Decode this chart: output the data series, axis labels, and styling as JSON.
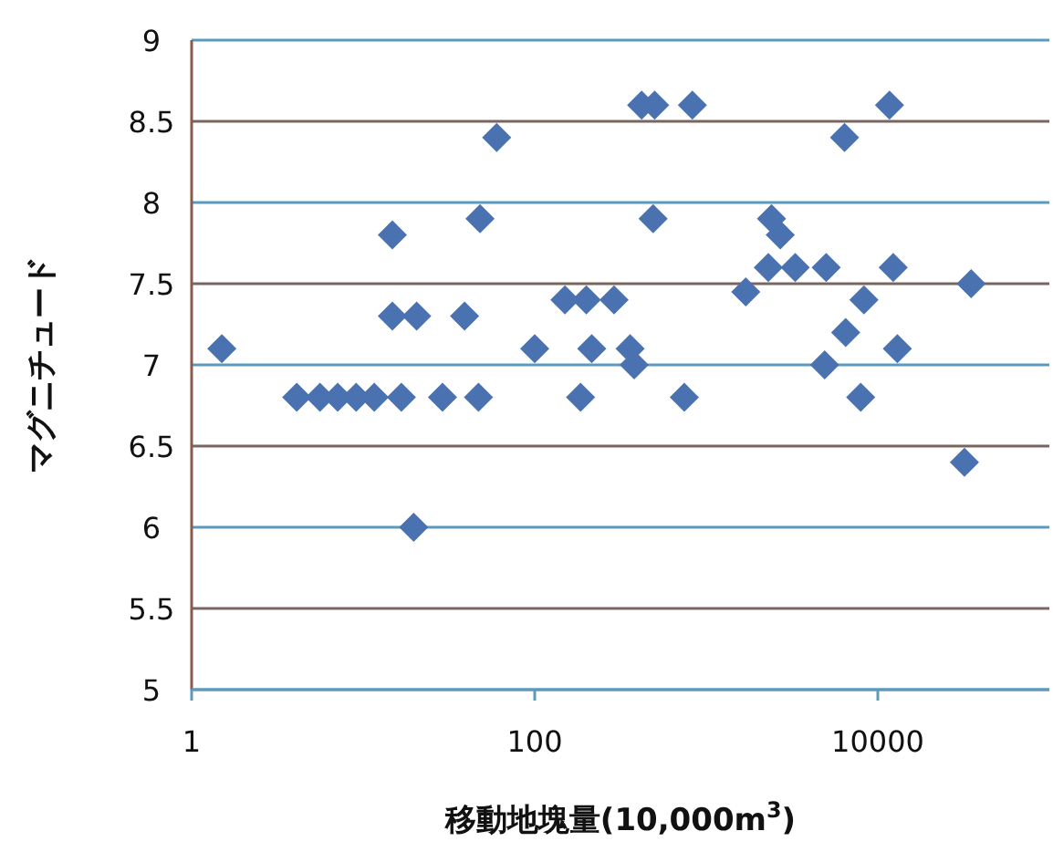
{
  "chart_data": {
    "type": "scatter",
    "xlabel": "移動地塊量(10,000m$^{3}$)",
    "ylabel": "マグニチュード",
    "log": "x",
    "grid": "y",
    "marker": "diamond",
    "xlim": [
      1,
      100000
    ],
    "xticks": [
      1,
      100,
      10000
    ],
    "ylim": [
      5,
      9
    ],
    "yticks": [
      5,
      5.5,
      6,
      6.5,
      7,
      7.5,
      8,
      8.5,
      9
    ],
    "series": [
      {
        "color": "#4a72b0",
        "x": [
          1.5,
          4.1,
          5.6,
          7.1,
          9.1,
          11.6,
          16.7,
          29,
          47,
          185,
          745,
          7950,
          19.7,
          14.8,
          20.5,
          39,
          100,
          14.8,
          48,
          60,
          420,
          500,
          830,
          11700,
          6400,
          490,
          2400,
          2700,
          2300,
          3300,
          5000,
          12300,
          1700,
          35000,
          150,
          200,
          290,
          8300,
          6500,
          215,
          360,
          13000,
          380,
          4900,
          32000
        ],
        "values": [
          7.1,
          6.8,
          6.8,
          6.8,
          6.8,
          6.8,
          6.8,
          6.8,
          6.8,
          6.8,
          6.8,
          6.8,
          6.0,
          7.3,
          7.3,
          7.3,
          7.1,
          7.8,
          7.9,
          8.4,
          8.6,
          8.6,
          8.6,
          8.6,
          8.4,
          7.9,
          7.9,
          7.8,
          7.6,
          7.6,
          7.6,
          7.6,
          7.45,
          7.5,
          7.4,
          7.4,
          7.4,
          7.4,
          7.2,
          7.1,
          7.1,
          7.1,
          7.0,
          7.0,
          6.4
        ]
      }
    ]
  }
}
